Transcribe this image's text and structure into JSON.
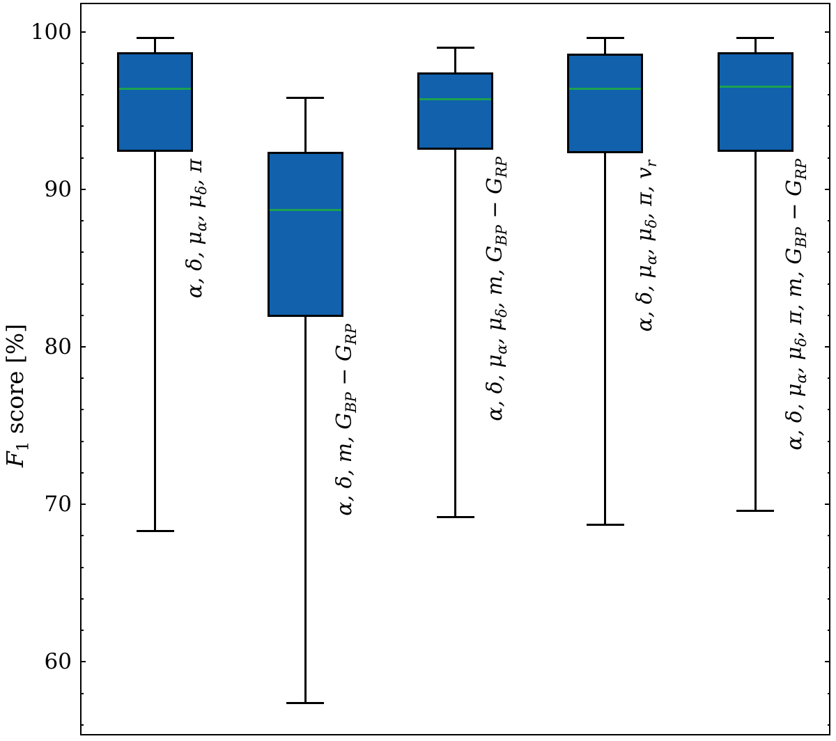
{
  "chart_data": {
    "type": "boxplot",
    "title": "",
    "xlabel": "",
    "ylabel": "F1 score [%]",
    "ylabel_rich": [
      {
        "t": "F",
        "italic": true
      },
      {
        "t": "1",
        "sub": true
      },
      {
        "t": " score [%]"
      }
    ],
    "ylim": [
      55.33,
      101.84
    ],
    "yticks_major": [
      60,
      70,
      80,
      90,
      100
    ],
    "ytick_labels": [
      "60",
      "70",
      "80",
      "90",
      "100"
    ],
    "yticks_minor": [
      56,
      58,
      62,
      64,
      66,
      68,
      72,
      74,
      76,
      78,
      82,
      84,
      86,
      88,
      92,
      94,
      96,
      98
    ],
    "grid": false,
    "legend": null,
    "tick_sides": [
      "left",
      "right"
    ],
    "colors": {
      "box_fill": "#1161ac",
      "box_edge": "#000000",
      "median_line": "#1ca24f",
      "whisker": "#000000",
      "spine": "#000000",
      "background": "#ffffff"
    },
    "boxes": [
      {
        "label": "α, δ, μ_α, μ_δ, π",
        "label_rich": [
          {
            "t": "α, δ, μ"
          },
          {
            "t": "α",
            "sub": true
          },
          {
            "t": ", μ"
          },
          {
            "t": "δ",
            "sub": true
          },
          {
            "t": ", π"
          }
        ],
        "whislo": 68.3,
        "q1": 92.4,
        "med": 96.4,
        "q3": 98.7,
        "whishi": 99.6,
        "fliers": []
      },
      {
        "label": "α, δ, m, G_BP − G_RP",
        "label_rich": [
          {
            "t": "α, δ, m, G"
          },
          {
            "t": "BP",
            "sub": true
          },
          {
            "t": " − G"
          },
          {
            "t": "RP",
            "sub": true
          }
        ],
        "whislo": 57.4,
        "q1": 81.9,
        "med": 88.7,
        "q3": 92.4,
        "whishi": 95.8,
        "fliers": []
      },
      {
        "label": "α, δ, μ_α, μ_δ, m, G_BP − G_RP",
        "label_rich": [
          {
            "t": "α, δ, μ"
          },
          {
            "t": "α",
            "sub": true
          },
          {
            "t": ", μ"
          },
          {
            "t": "δ",
            "sub": true
          },
          {
            "t": ", m, G"
          },
          {
            "t": "BP",
            "sub": true
          },
          {
            "t": " − G"
          },
          {
            "t": "RP",
            "sub": true
          }
        ],
        "whislo": 69.2,
        "q1": 92.5,
        "med": 95.7,
        "q3": 97.4,
        "whishi": 99.0,
        "fliers": []
      },
      {
        "label": "α, δ, μ_α, μ_δ, π, v_r",
        "label_rich": [
          {
            "t": "α, δ, μ"
          },
          {
            "t": "α",
            "sub": true
          },
          {
            "t": ", μ"
          },
          {
            "t": "δ",
            "sub": true
          },
          {
            "t": ", π, v"
          },
          {
            "t": "r",
            "sub": true
          }
        ],
        "whislo": 68.7,
        "q1": 92.3,
        "med": 96.4,
        "q3": 98.6,
        "whishi": 99.6,
        "fliers": []
      },
      {
        "label": "α, δ, μ_α, μ_δ, π, m, G_BP − G_RP",
        "label_rich": [
          {
            "t": "α, δ, μ"
          },
          {
            "t": "α",
            "sub": true
          },
          {
            "t": ", μ"
          },
          {
            "t": "δ",
            "sub": true
          },
          {
            "t": ", π, m, G"
          },
          {
            "t": "BP",
            "sub": true
          },
          {
            "t": " − G"
          },
          {
            "t": "RP",
            "sub": true
          }
        ],
        "whislo": 69.6,
        "q1": 92.4,
        "med": 96.5,
        "q3": 98.7,
        "whishi": 99.6,
        "fliers": []
      }
    ]
  }
}
